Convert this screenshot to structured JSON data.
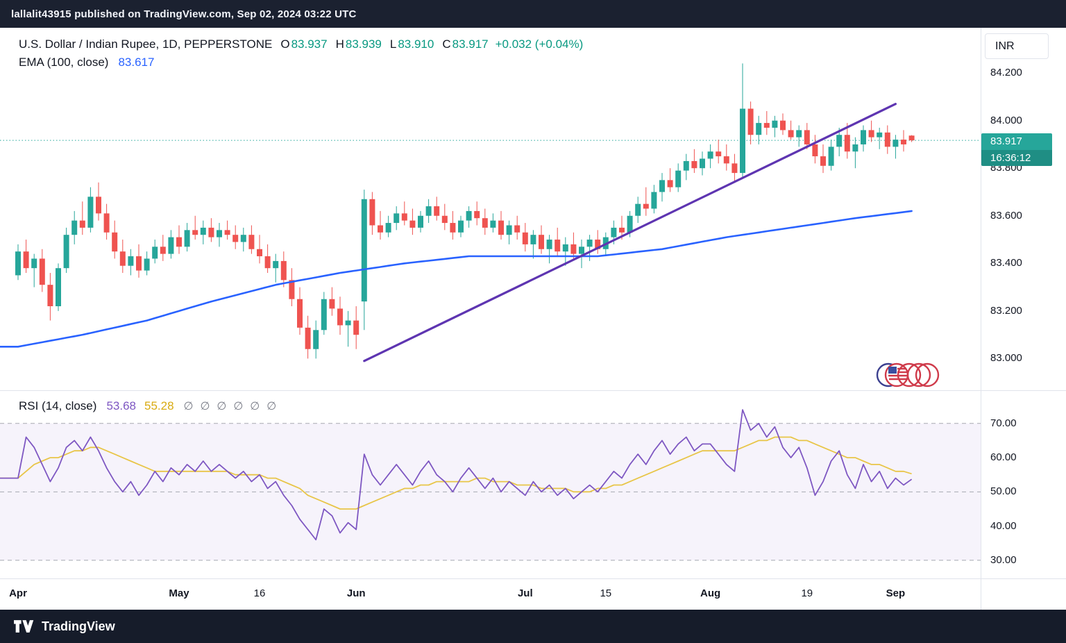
{
  "header": {
    "text": "lallalit43915 published on TradingView.com, Sep 02, 2024 03:22 UTC"
  },
  "footer": {
    "brand": "TradingView"
  },
  "currency_button": "INR",
  "symbol_legend": {
    "title": "U.S. Dollar / Indian Rupee, 1D, PEPPERSTONE",
    "o_label": "O",
    "o_value": "83.937",
    "h_label": "H",
    "h_value": "83.939",
    "l_label": "L",
    "l_value": "83.910",
    "c_label": "C",
    "c_value": "83.917",
    "change": "+0.032 (+0.04%)"
  },
  "ema_legend": {
    "label": "EMA (100, close)",
    "value": "83.617"
  },
  "rsi_legend": {
    "label": "RSI (14, close)",
    "rsi_value": "53.68",
    "ma_value": "55.28",
    "empty_markers": [
      "∅",
      "∅",
      "∅",
      "∅",
      "∅",
      "∅"
    ]
  },
  "price_badge": {
    "price": "83.917",
    "countdown": "16:36:12"
  },
  "price_axis": [
    "84.200",
    "84.000",
    "83.800",
    "83.600",
    "83.400",
    "83.200",
    "83.000"
  ],
  "rsi_axis": [
    "70.00",
    "60.00",
    "50.00",
    "40.00",
    "30.00"
  ],
  "time_axis": [
    {
      "label": "Apr",
      "i": 0,
      "major": true
    },
    {
      "label": "May",
      "i": 20,
      "major": true
    },
    {
      "label": "16",
      "i": 30,
      "major": false
    },
    {
      "label": "Jun",
      "i": 42,
      "major": true
    },
    {
      "label": "Jul",
      "i": 63,
      "major": true
    },
    {
      "label": "15",
      "i": 73,
      "major": false
    },
    {
      "label": "Aug",
      "i": 86,
      "major": true
    },
    {
      "label": "19",
      "i": 98,
      "major": false
    },
    {
      "label": "Sep",
      "i": 109,
      "major": true
    }
  ],
  "colors": {
    "up": "#26a69a",
    "down": "#ef5350",
    "up_text": "#089981",
    "ema": "#2962ff",
    "trendline": "#5e35b1",
    "rsi": "#7e57c2",
    "rsi_ma": "#e8c547",
    "band": "rgba(126,87,194,0.07)",
    "dashed_level": "#a5a8b1",
    "price_line": "#26a69a",
    "badge": "#26a69a",
    "badge_timer": "#1f8e84"
  },
  "chart_data": [
    {
      "type": "candlestick",
      "title": "U.S. Dollar / Indian Rupee, 1D, PEPPERSTONE",
      "timeframe": "1D",
      "exchange": "PEPPERSTONE",
      "last": {
        "open": 83.937,
        "high": 83.939,
        "low": 83.91,
        "close": 83.917,
        "change": 0.032,
        "change_pct": 0.04
      },
      "ylim": [
        82.867,
        84.39
      ],
      "price_line": 83.917,
      "ohlc": [
        [
          83.35,
          83.48,
          83.33,
          83.45
        ],
        [
          83.45,
          83.5,
          83.36,
          83.38
        ],
        [
          83.38,
          83.44,
          83.3,
          83.42
        ],
        [
          83.42,
          83.46,
          83.28,
          83.31
        ],
        [
          83.31,
          83.36,
          83.16,
          83.22
        ],
        [
          83.22,
          83.4,
          83.2,
          83.38
        ],
        [
          83.38,
          83.55,
          83.36,
          83.52
        ],
        [
          83.52,
          83.62,
          83.48,
          83.58
        ],
        [
          83.58,
          83.66,
          83.52,
          83.55
        ],
        [
          83.55,
          83.72,
          83.53,
          83.68
        ],
        [
          83.68,
          83.74,
          83.58,
          83.61
        ],
        [
          83.61,
          83.65,
          83.5,
          83.53
        ],
        [
          83.53,
          83.58,
          83.42,
          83.45
        ],
        [
          83.45,
          83.5,
          83.36,
          83.39
        ],
        [
          83.39,
          83.46,
          83.35,
          83.43
        ],
        [
          83.43,
          83.48,
          83.34,
          83.37
        ],
        [
          83.37,
          83.45,
          83.35,
          83.42
        ],
        [
          83.42,
          83.5,
          83.4,
          83.47
        ],
        [
          83.47,
          83.52,
          83.41,
          83.44
        ],
        [
          83.44,
          83.54,
          83.42,
          83.51
        ],
        [
          83.51,
          83.56,
          83.44,
          83.47
        ],
        [
          83.47,
          83.57,
          83.45,
          83.54
        ],
        [
          83.54,
          83.6,
          83.5,
          83.52
        ],
        [
          83.52,
          83.58,
          83.48,
          83.55
        ],
        [
          83.55,
          83.59,
          83.49,
          83.51
        ],
        [
          83.51,
          83.57,
          83.47,
          83.54
        ],
        [
          83.54,
          83.58,
          83.5,
          83.52
        ],
        [
          83.52,
          83.56,
          83.46,
          83.49
        ],
        [
          83.49,
          83.55,
          83.45,
          83.52
        ],
        [
          83.52,
          83.56,
          83.44,
          83.46
        ],
        [
          83.46,
          83.52,
          83.4,
          83.43
        ],
        [
          83.43,
          83.48,
          83.36,
          83.38
        ],
        [
          83.38,
          83.44,
          83.32,
          83.41
        ],
        [
          83.41,
          83.45,
          83.3,
          83.33
        ],
        [
          83.33,
          83.38,
          83.22,
          83.25
        ],
        [
          83.25,
          83.3,
          83.1,
          83.13
        ],
        [
          83.13,
          83.18,
          83.0,
          83.04
        ],
        [
          83.04,
          83.16,
          83.0,
          83.12
        ],
        [
          83.12,
          83.28,
          83.1,
          83.25
        ],
        [
          83.25,
          83.3,
          83.18,
          83.21
        ],
        [
          83.21,
          83.26,
          83.1,
          83.14
        ],
        [
          83.14,
          83.2,
          83.05,
          83.16
        ],
        [
          83.16,
          83.22,
          83.04,
          83.1
        ],
        [
          83.24,
          83.71,
          83.12,
          83.67
        ],
        [
          83.67,
          83.7,
          83.52,
          83.56
        ],
        [
          83.56,
          83.62,
          83.5,
          83.53
        ],
        [
          83.53,
          83.6,
          83.51,
          83.57
        ],
        [
          83.57,
          83.64,
          83.54,
          83.61
        ],
        [
          83.61,
          83.66,
          83.56,
          83.58
        ],
        [
          83.58,
          83.63,
          83.52,
          83.55
        ],
        [
          83.55,
          83.62,
          83.53,
          83.6
        ],
        [
          83.6,
          83.67,
          83.57,
          83.64
        ],
        [
          83.64,
          83.68,
          83.58,
          83.6
        ],
        [
          83.6,
          83.65,
          83.54,
          83.57
        ],
        [
          83.57,
          83.62,
          83.5,
          83.53
        ],
        [
          83.53,
          83.6,
          83.51,
          83.58
        ],
        [
          83.58,
          83.64,
          83.55,
          83.62
        ],
        [
          83.62,
          83.66,
          83.56,
          83.59
        ],
        [
          83.59,
          83.63,
          83.52,
          83.55
        ],
        [
          83.55,
          83.61,
          83.53,
          83.58
        ],
        [
          83.58,
          83.62,
          83.5,
          83.52
        ],
        [
          83.52,
          83.58,
          83.48,
          83.56
        ],
        [
          83.56,
          83.6,
          83.5,
          83.53
        ],
        [
          83.53,
          83.57,
          83.45,
          83.48
        ],
        [
          83.48,
          83.54,
          83.42,
          83.52
        ],
        [
          83.52,
          83.56,
          83.44,
          83.46
        ],
        [
          83.46,
          83.52,
          83.4,
          83.5
        ],
        [
          83.5,
          83.55,
          83.43,
          83.45
        ],
        [
          83.45,
          83.51,
          83.39,
          83.48
        ],
        [
          83.48,
          83.53,
          83.42,
          83.44
        ],
        [
          83.44,
          83.5,
          83.38,
          83.47
        ],
        [
          83.47,
          83.52,
          83.41,
          83.5
        ],
        [
          83.5,
          83.54,
          83.44,
          83.46
        ],
        [
          83.46,
          83.53,
          83.43,
          83.51
        ],
        [
          83.51,
          83.58,
          83.48,
          83.55
        ],
        [
          83.55,
          83.6,
          83.5,
          83.53
        ],
        [
          83.53,
          83.62,
          83.51,
          83.6
        ],
        [
          83.6,
          83.68,
          83.57,
          83.65
        ],
        [
          83.65,
          83.72,
          83.6,
          83.63
        ],
        [
          83.63,
          83.73,
          83.61,
          83.7
        ],
        [
          83.7,
          83.78,
          83.66,
          83.75
        ],
        [
          83.75,
          83.8,
          83.7,
          83.72
        ],
        [
          83.72,
          83.82,
          83.7,
          83.79
        ],
        [
          83.79,
          83.86,
          83.75,
          83.83
        ],
        [
          83.83,
          83.88,
          83.78,
          83.8
        ],
        [
          83.8,
          83.87,
          83.77,
          83.84
        ],
        [
          83.84,
          83.9,
          83.8,
          83.87
        ],
        [
          83.87,
          83.92,
          83.82,
          83.85
        ],
        [
          83.85,
          83.9,
          83.79,
          83.82
        ],
        [
          83.82,
          83.86,
          83.74,
          83.78
        ],
        [
          83.78,
          84.24,
          83.76,
          84.05
        ],
        [
          84.05,
          84.08,
          83.9,
          83.94
        ],
        [
          83.94,
          84.02,
          83.9,
          83.99
        ],
        [
          83.99,
          84.04,
          83.94,
          83.97
        ],
        [
          83.97,
          84.02,
          83.93,
          84.0
        ],
        [
          84.0,
          84.03,
          83.94,
          83.96
        ],
        [
          83.96,
          84.0,
          83.92,
          83.93
        ],
        [
          83.93,
          83.98,
          83.89,
          83.96
        ],
        [
          83.96,
          83.99,
          83.88,
          83.9
        ],
        [
          83.9,
          83.94,
          83.82,
          83.85
        ],
        [
          83.85,
          83.9,
          83.78,
          83.81
        ],
        [
          83.81,
          83.92,
          83.79,
          83.89
        ],
        [
          83.89,
          83.97,
          83.85,
          83.94
        ],
        [
          83.94,
          83.99,
          83.84,
          83.87
        ],
        [
          83.87,
          83.93,
          83.8,
          83.9
        ],
        [
          83.9,
          83.98,
          83.87,
          83.96
        ],
        [
          83.96,
          84.0,
          83.91,
          83.93
        ],
        [
          83.93,
          83.97,
          83.88,
          83.95
        ],
        [
          83.95,
          83.98,
          83.86,
          83.89
        ],
        [
          83.89,
          83.94,
          83.84,
          83.92
        ],
        [
          83.92,
          83.96,
          83.87,
          83.9
        ],
        [
          83.937,
          83.939,
          83.91,
          83.917
        ]
      ],
      "ema": {
        "period": 100,
        "source": "close",
        "value": 83.617,
        "keypoints": [
          [
            0,
            83.05
          ],
          [
            8,
            83.1
          ],
          [
            16,
            83.16
          ],
          [
            24,
            83.24
          ],
          [
            32,
            83.31
          ],
          [
            40,
            83.36
          ],
          [
            48,
            83.4
          ],
          [
            56,
            83.43
          ],
          [
            64,
            83.43
          ],
          [
            72,
            83.43
          ],
          [
            80,
            83.46
          ],
          [
            88,
            83.51
          ],
          [
            96,
            83.55
          ],
          [
            104,
            83.59
          ],
          [
            111,
            83.62
          ]
        ]
      },
      "trendline": {
        "from": [
          43,
          82.99
        ],
        "to": [
          109,
          84.07
        ]
      }
    },
    {
      "type": "line",
      "title": "RSI (14, close)",
      "ylim": [
        24.7,
        79.7
      ],
      "levels": [
        70,
        50,
        30
      ],
      "band": [
        30,
        70
      ],
      "axis_ticks": [
        70,
        60,
        50,
        40,
        30
      ],
      "last_values": [
        53.68,
        55.28
      ],
      "series": [
        {
          "name": "RSI",
          "color": "#7e57c2",
          "values": [
            54,
            66,
            63,
            58,
            53,
            57,
            63,
            65,
            62,
            66,
            62,
            57,
            53,
            50,
            53,
            49,
            52,
            56,
            53,
            57,
            55,
            58,
            56,
            59,
            56,
            58,
            56,
            54,
            56,
            53,
            55,
            51,
            53,
            49,
            46,
            42,
            39,
            36,
            45,
            43,
            38,
            41,
            39,
            61,
            55,
            52,
            55,
            58,
            55,
            52,
            56,
            59,
            55,
            53,
            50,
            54,
            57,
            54,
            51,
            54,
            50,
            53,
            51,
            49,
            53,
            50,
            52,
            49,
            51,
            48,
            50,
            52,
            50,
            53,
            56,
            54,
            58,
            61,
            58,
            62,
            65,
            61,
            64,
            66,
            62,
            64,
            64,
            61,
            58,
            56,
            74,
            68,
            70,
            66,
            69,
            63,
            60,
            63,
            57,
            49,
            53,
            59,
            62,
            55,
            51,
            58,
            53,
            56,
            51,
            54,
            52,
            53.68
          ]
        },
        {
          "name": "RSI-based MA",
          "color": "#e8c547",
          "values": [
            54,
            56,
            58,
            59,
            60,
            60,
            61,
            62,
            62,
            63,
            63,
            62,
            61,
            60,
            59,
            58,
            57,
            56,
            56,
            56,
            56,
            56,
            56,
            56,
            56,
            56,
            56,
            55,
            55,
            55,
            55,
            54,
            54,
            53,
            52,
            51,
            49,
            48,
            47,
            46,
            45,
            45,
            45,
            46,
            47,
            48,
            49,
            50,
            51,
            51,
            52,
            52,
            53,
            53,
            53,
            53,
            53,
            54,
            54,
            53,
            53,
            53,
            52,
            52,
            52,
            51,
            51,
            51,
            51,
            50,
            50,
            50,
            51,
            51,
            52,
            52,
            53,
            54,
            55,
            56,
            57,
            58,
            59,
            60,
            61,
            62,
            62,
            62,
            62,
            62,
            63,
            64,
            65,
            65,
            66,
            66,
            66,
            65,
            65,
            64,
            63,
            62,
            61,
            60,
            60,
            59,
            58,
            58,
            57,
            56,
            56,
            55.28
          ]
        }
      ]
    }
  ]
}
